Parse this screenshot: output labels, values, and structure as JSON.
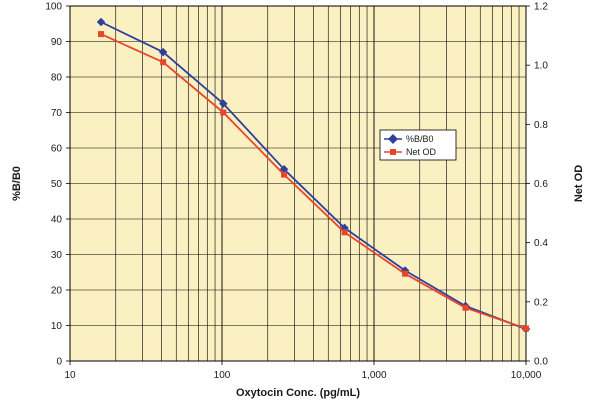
{
  "chart_data": {
    "type": "line",
    "xlabel": "Oxytocin Conc. (pg/mL)",
    "ylabel_left": "%B/B0",
    "ylabel_right": "Net OD",
    "x_scale": "log",
    "xlim": [
      10,
      10000
    ],
    "ylim_left": [
      0,
      100
    ],
    "ylim_right": [
      0,
      1.2
    ],
    "x_tick_labels": [
      "10",
      "100",
      "1,000",
      "10,000"
    ],
    "y_left_tick_labels": [
      "0",
      "10",
      "20",
      "30",
      "40",
      "50",
      "60",
      "70",
      "80",
      "90",
      "100"
    ],
    "y_right_tick_labels": [
      "0.0",
      "0.2",
      "0.4",
      "0.6",
      "0.8",
      "1.0",
      "1.2"
    ],
    "grid": true,
    "legend_position": "right-center",
    "plot_background": "#fbf0c1",
    "series": [
      {
        "name": "%B/B0",
        "axis": "left",
        "color": "#2e3f9e",
        "marker": "diamond",
        "x": [
          16,
          41,
          102,
          256,
          640,
          1600,
          4000,
          10000
        ],
        "y": [
          95.5,
          87,
          72.5,
          54,
          37.5,
          25.5,
          15.5,
          9
        ]
      },
      {
        "name": "Net OD",
        "axis": "right",
        "color": "#e8452b",
        "marker": "square",
        "x": [
          16,
          41,
          102,
          256,
          640,
          1600,
          4000,
          10000
        ],
        "y": [
          1.105,
          1.01,
          0.84,
          0.63,
          0.435,
          0.295,
          0.18,
          0.11
        ]
      }
    ]
  }
}
